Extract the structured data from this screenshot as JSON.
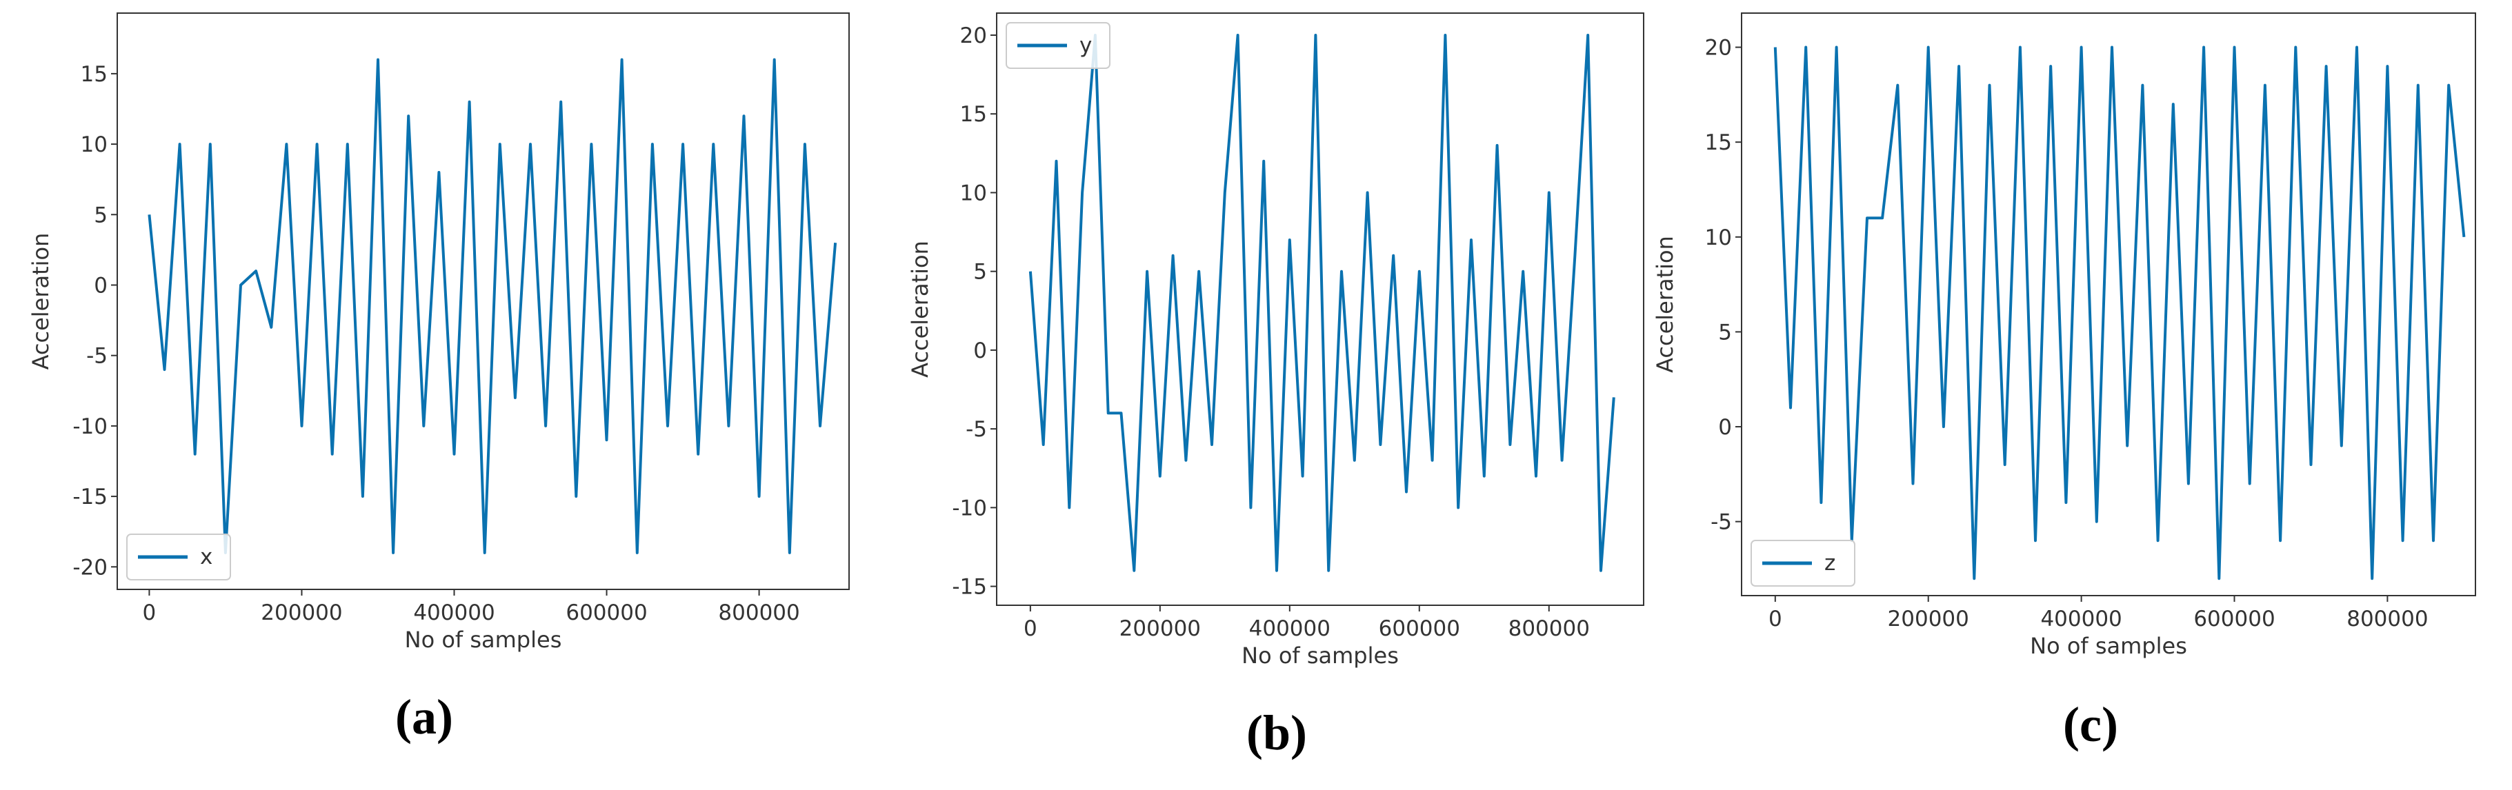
{
  "chart_data": [
    {
      "type": "line",
      "caption": "(a)",
      "xlabel": "No of samples",
      "ylabel": "Acceleration",
      "xlim": [
        -42000,
        918000
      ],
      "ylim": [
        -21.6,
        19.3
      ],
      "xticks": [
        0,
        200000,
        400000,
        600000,
        800000
      ],
      "yticks": [
        -20,
        -15,
        -10,
        -5,
        0,
        5,
        10,
        15
      ],
      "legend": "lower left",
      "x": [
        0,
        20000,
        40000,
        60000,
        80000,
        100000,
        120000,
        140000,
        160000,
        180000,
        200000,
        220000,
        240000,
        260000,
        280000,
        300000,
        320000,
        340000,
        360000,
        380000,
        400000,
        420000,
        440000,
        460000,
        480000,
        500000,
        520000,
        540000,
        560000,
        580000,
        600000,
        620000,
        640000,
        660000,
        680000,
        700000,
        720000,
        740000,
        760000,
        780000,
        800000,
        820000,
        840000,
        860000,
        880000,
        900000
      ],
      "series": [
        {
          "name": "x",
          "color": "#0a72b0",
          "values": [
            5,
            -6,
            10,
            -12,
            10,
            -19,
            0,
            1,
            -3,
            10,
            -10,
            10,
            -12,
            10,
            -15,
            16,
            -19,
            12,
            -10,
            8,
            -12,
            13,
            -19,
            10,
            -8,
            10,
            -10,
            13,
            -15,
            10,
            -11,
            16,
            -19,
            10,
            -10,
            10,
            -12,
            10,
            -10,
            12,
            -15,
            16,
            -19,
            10,
            -10,
            3
          ]
        }
      ]
    },
    {
      "type": "line",
      "caption": "(b)",
      "xlabel": "No of samples",
      "ylabel": "Acceleration",
      "xlim": [
        -52000,
        946000
      ],
      "ylim": [
        -16.2,
        21.4
      ],
      "xticks": [
        0,
        200000,
        400000,
        600000,
        800000
      ],
      "yticks": [
        -15,
        -10,
        -5,
        0,
        5,
        10,
        15,
        20
      ],
      "legend": "upper left",
      "x": [
        0,
        20000,
        40000,
        60000,
        80000,
        100000,
        120000,
        140000,
        160000,
        180000,
        200000,
        220000,
        240000,
        260000,
        280000,
        300000,
        320000,
        340000,
        360000,
        380000,
        400000,
        420000,
        440000,
        460000,
        480000,
        500000,
        520000,
        540000,
        560000,
        580000,
        600000,
        620000,
        640000,
        660000,
        680000,
        700000,
        720000,
        740000,
        760000,
        780000,
        800000,
        820000,
        840000,
        860000,
        880000,
        900000
      ],
      "series": [
        {
          "name": "y",
          "color": "#0a72b0",
          "values": [
            5,
            -6,
            12,
            -10,
            10,
            20,
            -4,
            -4,
            -14,
            5,
            -8,
            6,
            -7,
            5,
            -6,
            10,
            20,
            -10,
            12,
            -14,
            7,
            -8,
            20,
            -14,
            5,
            -7,
            10,
            -6,
            6,
            -9,
            5,
            -7,
            20,
            -10,
            7,
            -8,
            13,
            -6,
            5,
            -8,
            10,
            -7,
            6,
            20,
            -14,
            -3
          ]
        }
      ]
    },
    {
      "type": "line",
      "caption": "(c)",
      "xlabel": "No of samples",
      "ylabel": "Acceleration",
      "xlim": [
        -44000,
        915000
      ],
      "ylim": [
        -8.9,
        21.8
      ],
      "xticks": [
        0,
        200000,
        400000,
        600000,
        800000
      ],
      "yticks": [
        -5,
        0,
        5,
        10,
        15,
        20
      ],
      "legend": "lower left",
      "x": [
        0,
        20000,
        40000,
        60000,
        80000,
        100000,
        120000,
        140000,
        160000,
        180000,
        200000,
        220000,
        240000,
        260000,
        280000,
        300000,
        320000,
        340000,
        360000,
        380000,
        400000,
        420000,
        440000,
        460000,
        480000,
        500000,
        520000,
        540000,
        560000,
        580000,
        600000,
        620000,
        640000,
        660000,
        680000,
        700000,
        720000,
        740000,
        760000,
        780000,
        800000,
        820000,
        840000,
        860000,
        880000,
        900000
      ],
      "series": [
        {
          "name": "z",
          "color": "#0a72b0",
          "values": [
            20,
            1,
            20,
            -4,
            20,
            -6,
            11,
            11,
            18,
            -3,
            20,
            0,
            19,
            -8,
            18,
            -2,
            20,
            -6,
            19,
            -4,
            20,
            -5,
            20,
            -1,
            18,
            -6,
            17,
            -3,
            20,
            -8,
            20,
            -3,
            18,
            -6,
            20,
            -2,
            19,
            -1,
            20,
            -8,
            19,
            -6,
            18,
            -6,
            18,
            10
          ]
        }
      ]
    }
  ]
}
